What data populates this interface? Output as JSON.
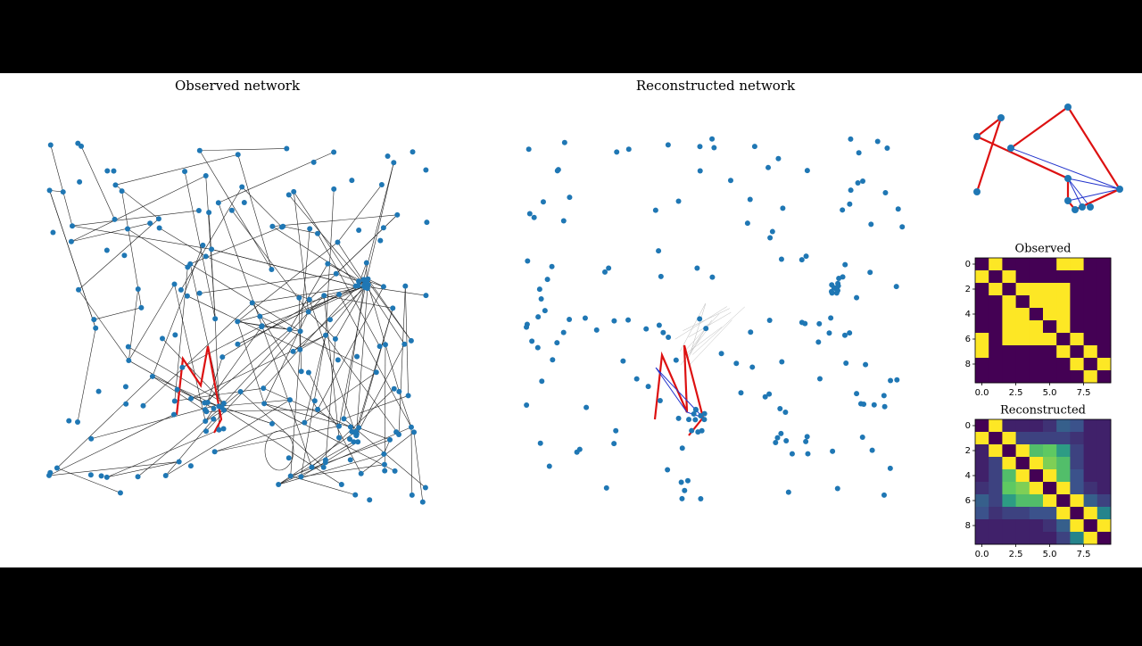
{
  "panels": {
    "observed": {
      "title": "Observed network"
    },
    "reconstructed": {
      "title": "Reconstructed network"
    }
  },
  "heatmaps": [
    {
      "title": "Observed",
      "colormap": "viridis",
      "lim": [
        0,
        1
      ],
      "xticks": [
        {
          "value": 0,
          "label": "0.0"
        },
        2.5,
        {
          "value": 5,
          "label": "5.0"
        },
        7.5
      ],
      "yticks": [
        0,
        2,
        4,
        6,
        8
      ],
      "matrix": [
        [
          0,
          1,
          0,
          0,
          0,
          0,
          1,
          1,
          0,
          0
        ],
        [
          1,
          0,
          1,
          0,
          0,
          0,
          0,
          0,
          0,
          0
        ],
        [
          0,
          1,
          0,
          1,
          1,
          1,
          1,
          0,
          0,
          0
        ],
        [
          0,
          0,
          1,
          0,
          1,
          1,
          1,
          0,
          0,
          0
        ],
        [
          0,
          0,
          1,
          1,
          0,
          1,
          1,
          0,
          0,
          0
        ],
        [
          0,
          0,
          1,
          1,
          1,
          0,
          1,
          0,
          0,
          0
        ],
        [
          1,
          0,
          1,
          1,
          1,
          1,
          0,
          1,
          0,
          0
        ],
        [
          1,
          0,
          0,
          0,
          0,
          0,
          1,
          0,
          1,
          0
        ],
        [
          0,
          0,
          0,
          0,
          0,
          0,
          0,
          1,
          0,
          1
        ],
        [
          0,
          0,
          0,
          0,
          0,
          0,
          0,
          0,
          1,
          0
        ]
      ]
    },
    {
      "title": "Reconstructed",
      "colormap": "viridis",
      "lim": [
        0,
        1
      ],
      "xticks": [
        {
          "value": 0,
          "label": "0.0"
        },
        2.5,
        {
          "value": 5,
          "label": "5.0"
        },
        7.5
      ],
      "yticks": [
        0,
        2,
        4,
        6,
        8
      ],
      "matrix": [
        [
          0,
          1,
          0.1,
          0.1,
          0.1,
          0.15,
          0.3,
          0.25,
          0.1,
          0.1
        ],
        [
          1,
          0,
          1,
          0.2,
          0.2,
          0.2,
          0.2,
          0.15,
          0.1,
          0.1
        ],
        [
          0.1,
          1,
          0,
          1,
          0.7,
          0.75,
          0.55,
          0.2,
          0.1,
          0.1
        ],
        [
          0.1,
          0.2,
          1,
          0,
          1,
          0.8,
          0.7,
          0.2,
          0.1,
          0.1
        ],
        [
          0.1,
          0.2,
          0.7,
          1,
          0,
          1,
          0.7,
          0.25,
          0.1,
          0.1
        ],
        [
          0.15,
          0.2,
          0.75,
          0.8,
          1,
          0,
          1,
          0.25,
          0.15,
          0.1
        ],
        [
          0.3,
          0.2,
          0.55,
          0.7,
          0.7,
          1,
          0,
          1,
          0.3,
          0.2
        ],
        [
          0.25,
          0.15,
          0.2,
          0.2,
          0.25,
          0.25,
          1,
          0,
          1,
          0.45
        ],
        [
          0.1,
          0.1,
          0.1,
          0.1,
          0.1,
          0.15,
          0.3,
          1,
          0,
          1
        ],
        [
          0.1,
          0.1,
          0.1,
          0.1,
          0.1,
          0.1,
          0.2,
          0.45,
          1,
          0
        ]
      ]
    }
  ]
}
